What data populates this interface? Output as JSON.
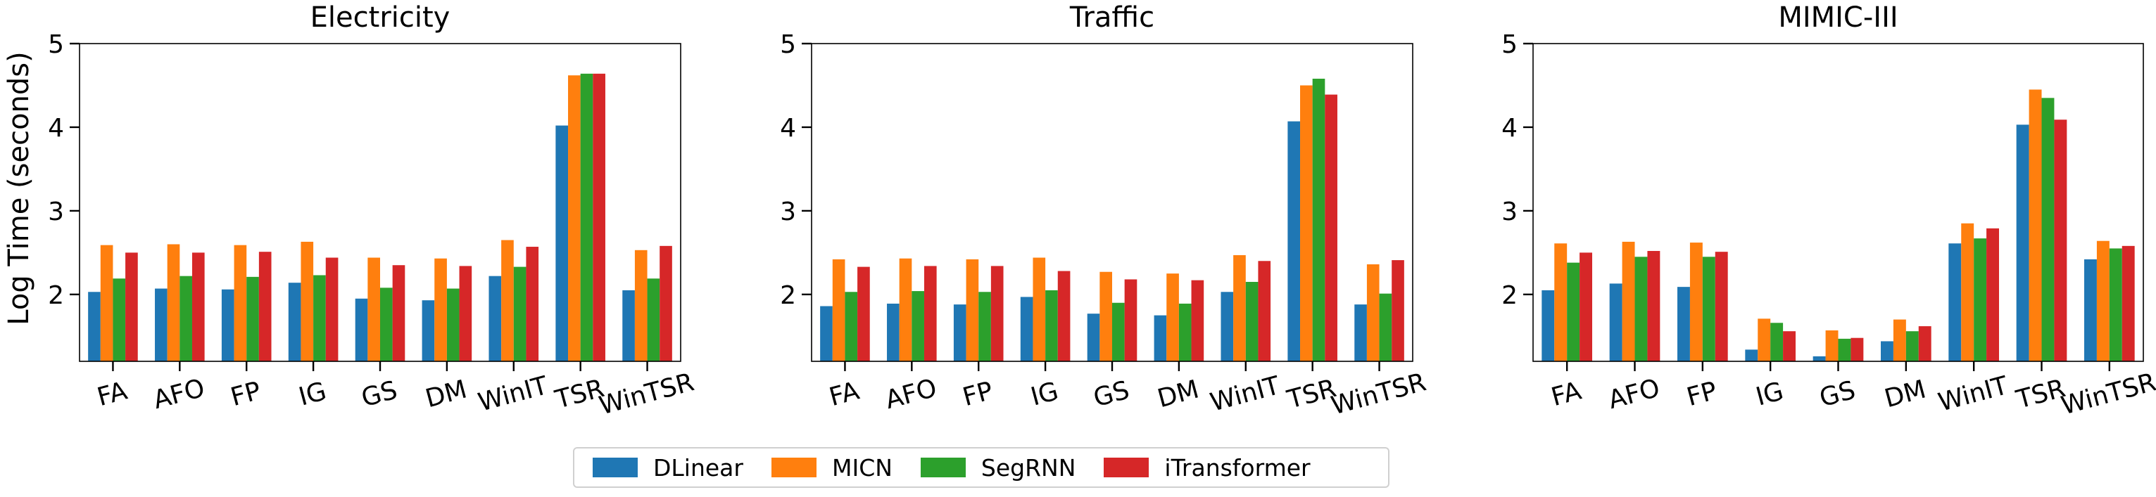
{
  "figure": {
    "ylabel": "Log Time (seconds)"
  },
  "legend": {
    "items": [
      {
        "label": "DLinear",
        "color": "#1f77b4"
      },
      {
        "label": "MICN",
        "color": "#ff7f0e"
      },
      {
        "label": "SegRNN",
        "color": "#2ca02c"
      },
      {
        "label": "iTransformer",
        "color": "#d62728"
      }
    ]
  },
  "chart_data": [
    {
      "type": "bar",
      "title": "Electricity",
      "xlabel": "",
      "ylabel": "Log Time (seconds)",
      "ylim": [
        1.2,
        5.0
      ],
      "yticks": [
        2,
        3,
        4,
        5
      ],
      "grid": false,
      "categories": [
        "FA",
        "AFO",
        "FP",
        "IG",
        "GS",
        "DM",
        "WinIT",
        "TSR",
        "WinTSR"
      ],
      "series": [
        {
          "name": "DLinear",
          "values": [
            2.03,
            2.07,
            2.06,
            2.14,
            1.95,
            1.93,
            2.22,
            4.02,
            2.05
          ]
        },
        {
          "name": "MICN",
          "values": [
            2.59,
            2.6,
            2.59,
            2.63,
            2.44,
            2.43,
            2.65,
            4.62,
            2.53
          ]
        },
        {
          "name": "SegRNN",
          "values": [
            2.19,
            2.22,
            2.21,
            2.23,
            2.08,
            2.07,
            2.33,
            4.64,
            2.19
          ]
        },
        {
          "name": "iTransformer",
          "values": [
            2.5,
            2.5,
            2.51,
            2.44,
            2.35,
            2.34,
            2.57,
            4.64,
            2.58
          ]
        }
      ]
    },
    {
      "type": "bar",
      "title": "Traffic",
      "xlabel": "",
      "ylabel": "",
      "ylim": [
        1.2,
        5.0
      ],
      "yticks": [
        2,
        3,
        4,
        5
      ],
      "grid": false,
      "categories": [
        "FA",
        "AFO",
        "FP",
        "IG",
        "GS",
        "DM",
        "WinIT",
        "TSR",
        "WinTSR"
      ],
      "series": [
        {
          "name": "DLinear",
          "values": [
            1.86,
            1.89,
            1.88,
            1.97,
            1.77,
            1.75,
            2.03,
            4.07,
            1.88
          ]
        },
        {
          "name": "MICN",
          "values": [
            2.42,
            2.43,
            2.42,
            2.44,
            2.27,
            2.25,
            2.47,
            4.5,
            2.36
          ]
        },
        {
          "name": "SegRNN",
          "values": [
            2.03,
            2.04,
            2.03,
            2.05,
            1.9,
            1.89,
            2.15,
            4.58,
            2.01
          ]
        },
        {
          "name": "iTransformer",
          "values": [
            2.33,
            2.34,
            2.34,
            2.28,
            2.18,
            2.17,
            2.4,
            4.39,
            2.41
          ]
        }
      ]
    },
    {
      "type": "bar",
      "title": "MIMIC-III",
      "xlabel": "",
      "ylabel": "",
      "ylim": [
        1.2,
        5.0
      ],
      "yticks": [
        2,
        3,
        4,
        5
      ],
      "grid": false,
      "categories": [
        "FA",
        "AFO",
        "FP",
        "IG",
        "GS",
        "DM",
        "WinIT",
        "TSR",
        "WinTSR"
      ],
      "series": [
        {
          "name": "DLinear",
          "values": [
            2.05,
            2.13,
            2.09,
            1.34,
            1.26,
            1.44,
            2.61,
            4.03,
            2.42
          ]
        },
        {
          "name": "MICN",
          "values": [
            2.61,
            2.63,
            2.62,
            1.71,
            1.57,
            1.7,
            2.85,
            4.45,
            2.64
          ]
        },
        {
          "name": "SegRNN",
          "values": [
            2.38,
            2.45,
            2.45,
            1.66,
            1.47,
            1.56,
            2.67,
            4.35,
            2.55
          ]
        },
        {
          "name": "iTransformer",
          "values": [
            2.5,
            2.52,
            2.51,
            1.56,
            1.48,
            1.62,
            2.79,
            4.09,
            2.58
          ]
        }
      ]
    }
  ]
}
